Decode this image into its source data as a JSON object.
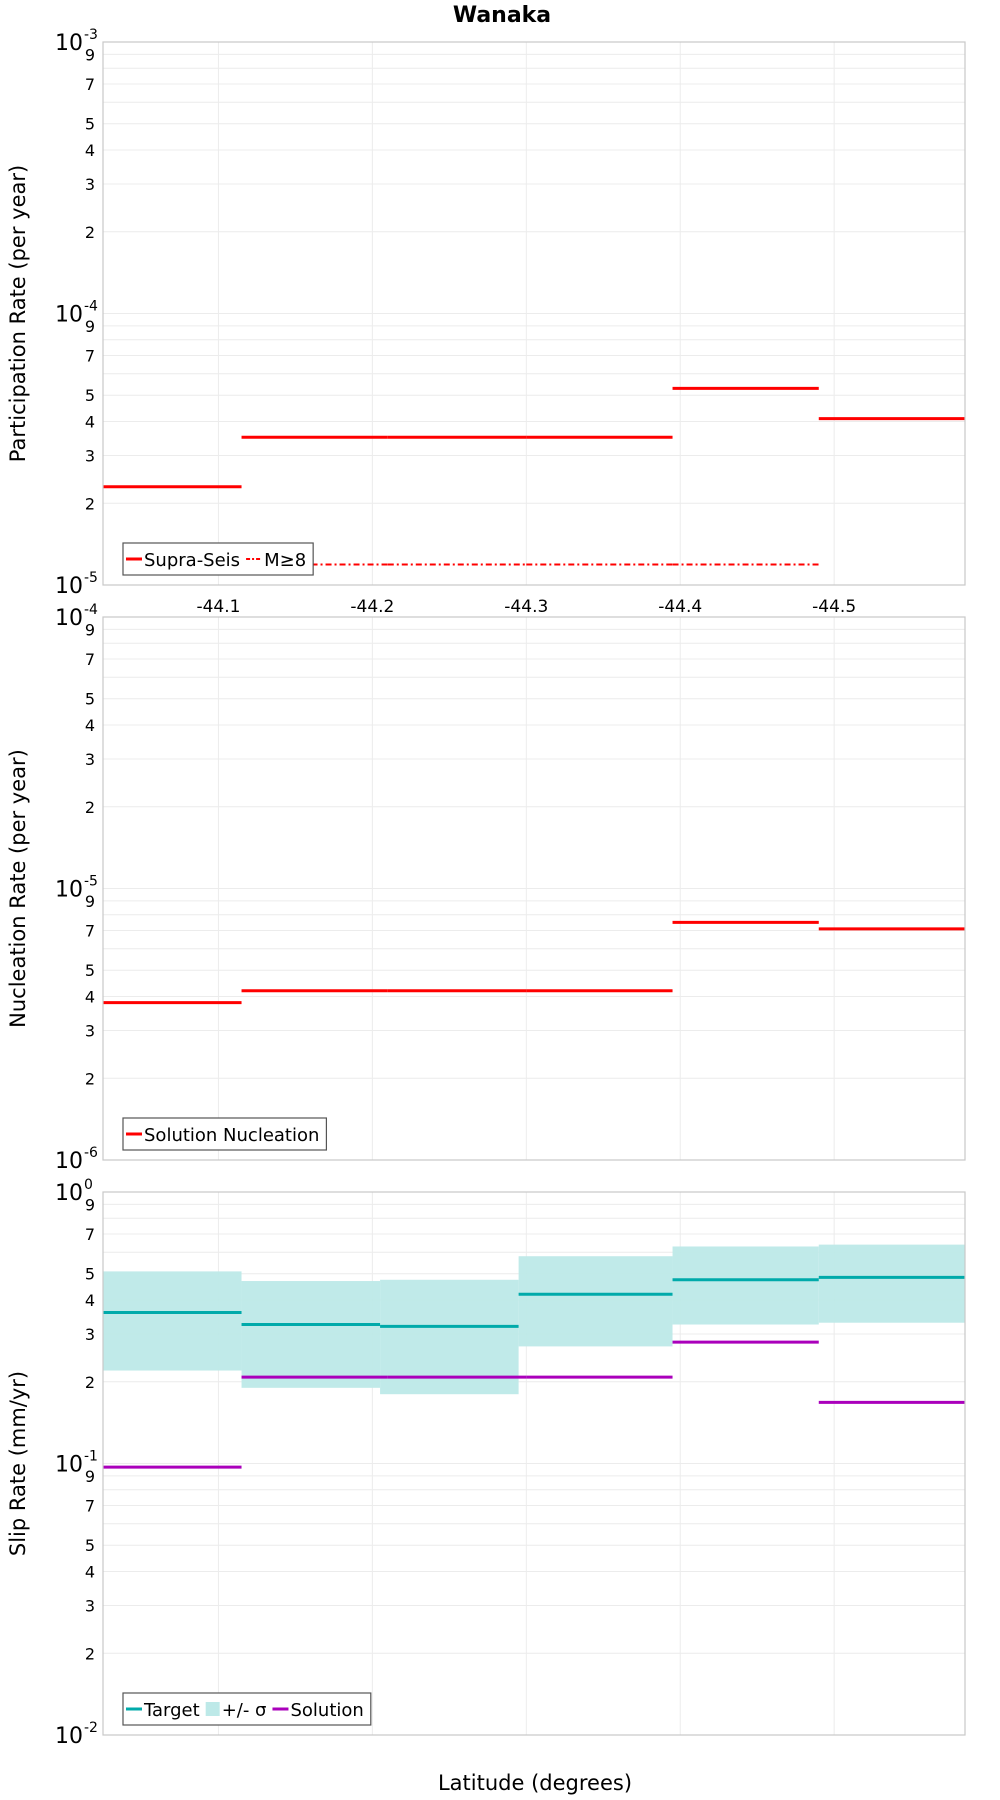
{
  "chart_title": "Wanaka",
  "x_axis_label": "Latitude (degrees)",
  "colors": {
    "supra_seis": "#ff0000",
    "target": "#00aaaa",
    "sigma_band": "#bde9e8",
    "solution": "#aa00bb"
  },
  "chart_data": [
    {
      "type": "line",
      "ylabel": "Participation Rate (per year)",
      "yscale": "log",
      "ylim": [
        1e-05,
        0.001
      ],
      "xlim": [
        -44.025,
        -44.585
      ],
      "xticks": [
        -44.1,
        -44.2,
        -44.3,
        -44.4,
        -44.5
      ],
      "xticklabels": [
        "-44.1",
        "-44.2",
        "-44.3",
        "-44.4",
        "-44.5"
      ],
      "yticks": [
        {
          "value": 1e-05,
          "label": "10",
          "exp": "-5"
        },
        {
          "value": 0.0001,
          "label": "10",
          "exp": "-4"
        },
        {
          "value": 0.001,
          "label": "10",
          "exp": "-3"
        }
      ],
      "legend": [
        "Supra-Seis",
        "M≥8"
      ],
      "series": [
        {
          "name": "Supra-Seis",
          "style": "solid",
          "color": "#ff0000",
          "segments": [
            {
              "x": [
                -44.025,
                -44.115
              ],
              "y": 2.3e-05
            },
            {
              "x": [
                -44.115,
                -44.21
              ],
              "y": 3.5e-05
            },
            {
              "x": [
                -44.21,
                -44.3
              ],
              "y": 3.5e-05
            },
            {
              "x": [
                -44.3,
                -44.395
              ],
              "y": 3.5e-05
            },
            {
              "x": [
                -44.395,
                -44.49
              ],
              "y": 5.3e-05
            },
            {
              "x": [
                -44.49,
                -44.585
              ],
              "y": 4.1e-05
            }
          ]
        },
        {
          "name": "M≥8",
          "style": "dashdot",
          "color": "#ff0000",
          "segments": [
            {
              "x": [
                -44.115,
                -44.21
              ],
              "y": 1.19e-05
            },
            {
              "x": [
                -44.21,
                -44.3
              ],
              "y": 1.19e-05
            },
            {
              "x": [
                -44.3,
                -44.395
              ],
              "y": 1.19e-05
            },
            {
              "x": [
                -44.395,
                -44.49
              ],
              "y": 1.19e-05
            }
          ]
        }
      ]
    },
    {
      "type": "line",
      "ylabel": "Nucleation Rate (per year)",
      "yscale": "log",
      "ylim": [
        1e-06,
        0.0001
      ],
      "xlim": [
        -44.025,
        -44.585
      ],
      "xticks": [
        -44.1,
        -44.2,
        -44.3,
        -44.4,
        -44.5
      ],
      "xticklabels": [],
      "yticks": [
        {
          "value": 1e-06,
          "label": "10",
          "exp": "-6"
        },
        {
          "value": 1e-05,
          "label": "10",
          "exp": "-5"
        },
        {
          "value": 0.0001,
          "label": "10",
          "exp": "-4"
        }
      ],
      "legend": [
        "Solution Nucleation"
      ],
      "series": [
        {
          "name": "Solution Nucleation",
          "style": "solid",
          "color": "#ff0000",
          "segments": [
            {
              "x": [
                -44.025,
                -44.115
              ],
              "y": 3.8e-06
            },
            {
              "x": [
                -44.115,
                -44.21
              ],
              "y": 4.2e-06
            },
            {
              "x": [
                -44.21,
                -44.3
              ],
              "y": 4.2e-06
            },
            {
              "x": [
                -44.3,
                -44.395
              ],
              "y": 4.2e-06
            },
            {
              "x": [
                -44.395,
                -44.49
              ],
              "y": 7.5e-06
            },
            {
              "x": [
                -44.49,
                -44.585
              ],
              "y": 7.1e-06
            }
          ]
        }
      ]
    },
    {
      "type": "line",
      "ylabel": "Slip Rate (mm/yr)",
      "yscale": "log",
      "ylim": [
        0.01,
        1
      ],
      "xlim": [
        -44.025,
        -44.585
      ],
      "xticks": [
        -44.1,
        -44.2,
        -44.3,
        -44.4,
        -44.5
      ],
      "xticklabels": [],
      "yticks": [
        {
          "value": 0.01,
          "label": "10",
          "exp": "-2"
        },
        {
          "value": 0.1,
          "label": "10",
          "exp": "-1"
        },
        {
          "value": 1,
          "label": "10",
          "exp": "0"
        }
      ],
      "legend": [
        "Target",
        "+/- σ",
        "Solution"
      ],
      "bands": [
        {
          "x": [
            -44.025,
            -44.115
          ],
          "low": 0.22,
          "high": 0.51
        },
        {
          "x": [
            -44.115,
            -44.205
          ],
          "low": 0.19,
          "high": 0.47
        },
        {
          "x": [
            -44.205,
            -44.295
          ],
          "low": 0.18,
          "high": 0.475
        },
        {
          "x": [
            -44.295,
            -44.395
          ],
          "low": 0.27,
          "high": 0.58
        },
        {
          "x": [
            -44.395,
            -44.49
          ],
          "low": 0.325,
          "high": 0.63
        },
        {
          "x": [
            -44.49,
            -44.585
          ],
          "low": 0.33,
          "high": 0.64
        }
      ],
      "series": [
        {
          "name": "Target",
          "style": "solid",
          "color": "#00aaaa",
          "segments": [
            {
              "x": [
                -44.025,
                -44.115
              ],
              "y": 0.36
            },
            {
              "x": [
                -44.115,
                -44.205
              ],
              "y": 0.325
            },
            {
              "x": [
                -44.205,
                -44.295
              ],
              "y": 0.32
            },
            {
              "x": [
                -44.295,
                -44.395
              ],
              "y": 0.42
            },
            {
              "x": [
                -44.395,
                -44.49
              ],
              "y": 0.475
            },
            {
              "x": [
                -44.49,
                -44.585
              ],
              "y": 0.485
            }
          ]
        },
        {
          "name": "Solution",
          "style": "solid",
          "color": "#aa00bb",
          "segments": [
            {
              "x": [
                -44.025,
                -44.115
              ],
              "y": 0.097
            },
            {
              "x": [
                -44.115,
                -44.21
              ],
              "y": 0.208
            },
            {
              "x": [
                -44.21,
                -44.3
              ],
              "y": 0.208
            },
            {
              "x": [
                -44.3,
                -44.395
              ],
              "y": 0.208
            },
            {
              "x": [
                -44.395,
                -44.49
              ],
              "y": 0.28
            },
            {
              "x": [
                -44.49,
                -44.585
              ],
              "y": 0.168
            }
          ]
        }
      ]
    }
  ]
}
